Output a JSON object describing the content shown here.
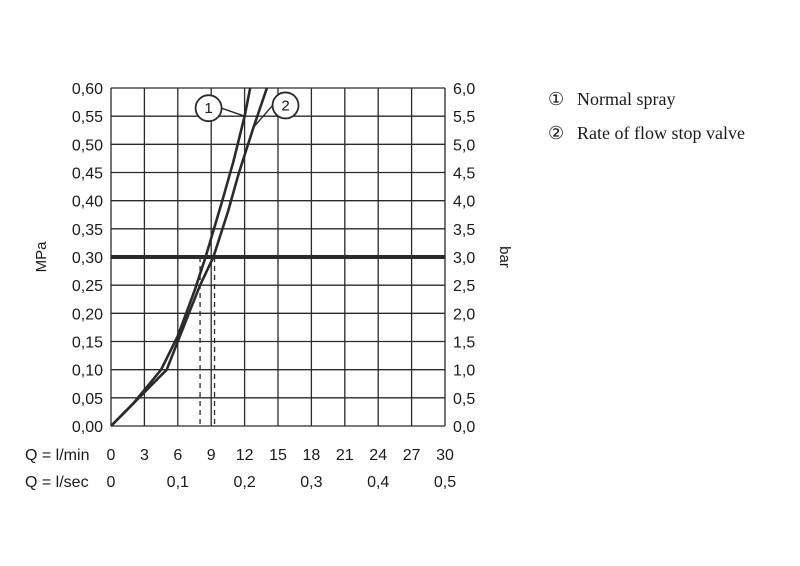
{
  "chart_data": {
    "type": "line",
    "left_axis": {
      "label": "MPa",
      "range": [
        0,
        0.6
      ],
      "ticks": [
        "0,00",
        "0,05",
        "0,10",
        "0,15",
        "0,20",
        "0,25",
        "0,30",
        "0,35",
        "0,40",
        "0,45",
        "0,50",
        "0,55",
        "0,60"
      ]
    },
    "right_axis": {
      "label": "bar",
      "range": [
        0,
        6
      ],
      "ticks": [
        "0,0",
        "0,5",
        "1,0",
        "1,5",
        "2,0",
        "2,5",
        "3,0",
        "3,5",
        "4,0",
        "4,5",
        "5,0",
        "5,5",
        "6,0"
      ]
    },
    "x_axis": {
      "label": "Q = l/min",
      "range": [
        0,
        30
      ],
      "ticks": [
        "0",
        "3",
        "6",
        "9",
        "12",
        "15",
        "18",
        "21",
        "24",
        "27",
        "30"
      ]
    },
    "x_axis_secondary": {
      "label": "Q = l/sec",
      "ticks": [
        {
          "value_lmin": 0,
          "label": "0"
        },
        {
          "value_lmin": 6,
          "label": "0,1"
        },
        {
          "value_lmin": 12,
          "label": "0,2"
        },
        {
          "value_lmin": 18,
          "label": "0,3"
        },
        {
          "value_lmin": 24,
          "label": "0,4"
        },
        {
          "value_lmin": 30,
          "label": "0,5"
        }
      ]
    },
    "grid": true,
    "reference_line_mpa": 0.3,
    "series": [
      {
        "marker": "1",
        "name": "Normal spray",
        "points": [
          [
            0,
            0
          ],
          [
            2,
            0.04
          ],
          [
            4.5,
            0.1
          ],
          [
            6,
            0.16
          ],
          [
            7.5,
            0.24
          ],
          [
            8.5,
            0.3
          ],
          [
            10,
            0.4
          ],
          [
            11,
            0.47
          ],
          [
            12,
            0.55
          ],
          [
            12.5,
            0.6
          ]
        ]
      },
      {
        "marker": "2",
        "name": "Rate of flow stop valve",
        "points": [
          [
            0,
            0
          ],
          [
            2,
            0.04
          ],
          [
            5,
            0.1
          ],
          [
            7,
            0.2
          ],
          [
            8,
            0.25
          ],
          [
            9.2,
            0.3
          ],
          [
            10.5,
            0.38
          ],
          [
            11.5,
            0.45
          ],
          [
            12.8,
            0.53
          ],
          [
            14,
            0.6
          ]
        ]
      }
    ],
    "operating_points_lmin": [
      8,
      9.3
    ],
    "legend": {
      "placement": "right",
      "items": [
        {
          "marker": "①",
          "label": "Normal spray"
        },
        {
          "marker": "②",
          "label": "Rate of flow stop valve"
        }
      ]
    }
  }
}
